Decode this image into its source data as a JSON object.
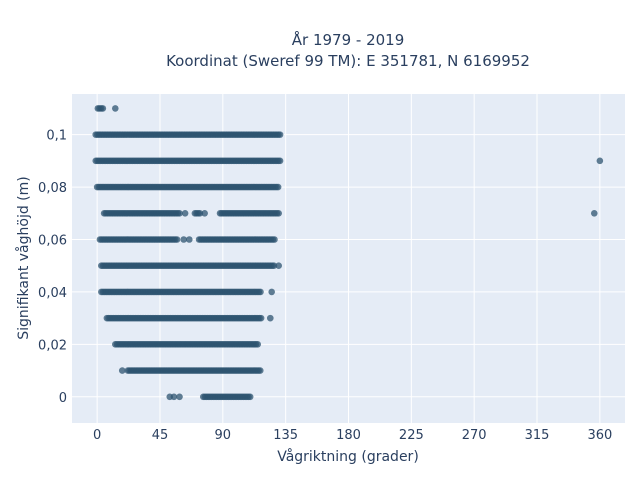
{
  "chart_data": {
    "type": "scatter",
    "title_lines": [
      "År 1979 - 2019",
      "Koordinat (Sweref 99 TM): E 351781, N 6169952"
    ],
    "xlabel": "Vågriktning (grader)",
    "ylabel": "Signifikant våghöjd (m)",
    "xlim": [
      -18,
      378
    ],
    "ylim": [
      -0.01,
      0.1155
    ],
    "x_ticks": [
      0,
      45,
      90,
      135,
      180,
      225,
      270,
      315,
      360
    ],
    "x_tick_labels": [
      "0",
      "45",
      "90",
      "135",
      "180",
      "225",
      "270",
      "315",
      "360"
    ],
    "y_ticks": [
      0,
      0.02,
      0.04,
      0.06,
      0.08,
      0.1
    ],
    "y_tick_labels": [
      "0",
      "0,02",
      "0,04",
      "0,06",
      "0,08",
      "0,1"
    ],
    "grid": true,
    "legend": "none",
    "marker_color": "#2e5470",
    "background_color": "#e5ecf6",
    "point_groups": [
      {
        "y": 0.11,
        "segments": [
          [
            0.5,
            5
          ]
        ],
        "points": [
          13
        ]
      },
      {
        "y": 0.1,
        "segments": [
          [
            -1,
            132
          ]
        ],
        "points": []
      },
      {
        "y": 0.09,
        "segments": [
          [
            -1,
            131
          ]
        ],
        "points": [
          360
        ]
      },
      {
        "y": 0.08,
        "segments": [
          [
            0,
            130
          ]
        ],
        "points": []
      },
      {
        "y": 0.07,
        "segments": [
          [
            5,
            60
          ],
          [
            70,
            74
          ],
          [
            88,
            131
          ]
        ],
        "points": [
          63,
          77,
          356
        ]
      },
      {
        "y": 0.06,
        "segments": [
          [
            2,
            58
          ],
          [
            73,
            128
          ]
        ],
        "points": [
          62,
          66
        ]
      },
      {
        "y": 0.05,
        "segments": [
          [
            3,
            127
          ]
        ],
        "points": [
          130
        ]
      },
      {
        "y": 0.04,
        "segments": [
          [
            3,
            118
          ]
        ],
        "points": [
          125
        ]
      },
      {
        "y": 0.03,
        "segments": [
          [
            7,
            118
          ]
        ],
        "points": [
          124
        ]
      },
      {
        "y": 0.02,
        "segments": [
          [
            13,
            115
          ]
        ],
        "points": []
      },
      {
        "y": 0.01,
        "segments": [
          [
            22,
            117
          ]
        ],
        "points": [
          18
        ]
      },
      {
        "y": 0.0,
        "segments": [
          [
            76,
            110
          ]
        ],
        "points": [
          52,
          55,
          59
        ]
      }
    ]
  }
}
